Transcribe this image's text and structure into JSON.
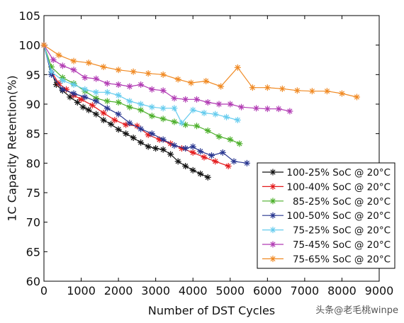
{
  "chart_data": {
    "type": "line",
    "title": "",
    "xlabel": "Number of DST Cycles",
    "ylabel": "1C Capacity Retention(%)",
    "xlim": [
      0,
      9000
    ],
    "ylim": [
      60,
      105
    ],
    "xticks": [
      0,
      1000,
      2000,
      3000,
      4000,
      5000,
      6000,
      7000,
      8000,
      9000
    ],
    "yticks": [
      60,
      65,
      70,
      75,
      80,
      85,
      90,
      95,
      100,
      105
    ],
    "grid": false,
    "legend_position": "lower-right",
    "series": [
      {
        "name": "100-25% SoC @ 20°C",
        "color": "#111111",
        "marker": "star",
        "x": [
          0,
          200,
          330,
          500,
          700,
          900,
          1050,
          1200,
          1400,
          1600,
          1800,
          2000,
          2200,
          2400,
          2600,
          2800,
          3000,
          3200,
          3400,
          3600,
          3800,
          4000,
          4200,
          4400
        ],
        "y": [
          100,
          95.5,
          93.3,
          92.3,
          91.2,
          90.3,
          89.5,
          89.0,
          88.3,
          87.3,
          86.6,
          85.7,
          85.0,
          84.3,
          83.5,
          82.8,
          82.5,
          82.3,
          81.5,
          80.3,
          79.5,
          78.8,
          78.2,
          77.6
        ]
      },
      {
        "name": "100-40% SoC @ 20°C",
        "color": "#e31a1c",
        "marker": "star",
        "x": [
          0,
          200,
          400,
          600,
          800,
          1000,
          1300,
          1600,
          1900,
          2200,
          2500,
          2800,
          3100,
          3400,
          3700,
          4000,
          4300,
          4600,
          4950
        ],
        "y": [
          100,
          95.5,
          93.5,
          92.5,
          91.5,
          90.8,
          89.8,
          88.5,
          87.3,
          86.5,
          86.3,
          84.8,
          84.0,
          83.3,
          82.5,
          81.8,
          81.0,
          80.3,
          79.5
        ]
      },
      {
        "name": "85-25% SoC @ 20°C",
        "color": "#4caf2a",
        "marker": "star",
        "x": [
          0,
          200,
          500,
          800,
          1100,
          1400,
          1700,
          2000,
          2300,
          2600,
          2900,
          3200,
          3500,
          3800,
          4100,
          4400,
          4700,
          5000,
          5250
        ],
        "y": [
          100,
          96.3,
          94.5,
          93.5,
          92.2,
          91.0,
          90.5,
          90.3,
          89.5,
          89.0,
          88.0,
          87.5,
          87.0,
          86.5,
          86.3,
          85.5,
          84.5,
          84.0,
          83.3
        ]
      },
      {
        "name": "100-50% SoC @ 20°C",
        "color": "#27358f",
        "marker": "star",
        "x": [
          0,
          200,
          500,
          800,
          1100,
          1400,
          1700,
          2000,
          2300,
          2600,
          2900,
          3200,
          3500,
          3800,
          4000,
          4200,
          4500,
          4800,
          5100,
          5450
        ],
        "y": [
          100,
          95.0,
          92.5,
          91.8,
          91.2,
          90.5,
          89.3,
          88.3,
          86.8,
          85.8,
          85.0,
          84.0,
          83.0,
          82.5,
          82.8,
          82.0,
          81.3,
          81.8,
          80.3,
          80.0
        ]
      },
      {
        "name": "75-25% SoC @ 20°C",
        "color": "#66ccee",
        "marker": "star",
        "x": [
          0,
          200,
          500,
          800,
          1100,
          1400,
          1700,
          2000,
          2300,
          2600,
          2900,
          3200,
          3500,
          3700,
          4000,
          4300,
          4600,
          4900,
          5200
        ],
        "y": [
          100,
          95.5,
          94.0,
          93.3,
          92.5,
          92.0,
          92.0,
          91.5,
          90.5,
          90.0,
          89.5,
          89.3,
          89.3,
          86.8,
          89.0,
          88.5,
          88.3,
          87.8,
          87.3
        ]
      },
      {
        "name": "75-45% SoC @ 20°C",
        "color": "#b13bb3",
        "marker": "star",
        "x": [
          0,
          250,
          500,
          800,
          1100,
          1400,
          1700,
          2000,
          2300,
          2600,
          2900,
          3200,
          3500,
          3800,
          4100,
          4400,
          4700,
          5000,
          5300,
          5700,
          6000,
          6300,
          6600
        ],
        "y": [
          100,
          97.5,
          96.5,
          95.8,
          94.5,
          94.3,
          93.5,
          93.3,
          93.0,
          93.3,
          92.5,
          92.3,
          91.0,
          90.8,
          90.8,
          90.3,
          90.0,
          90.0,
          89.5,
          89.3,
          89.2,
          89.2,
          88.8
        ]
      },
      {
        "name": "75-65% SoC @ 20°C",
        "color": "#f08a24",
        "marker": "star",
        "x": [
          0,
          400,
          800,
          1200,
          1600,
          2000,
          2400,
          2800,
          3200,
          3600,
          3950,
          4350,
          4750,
          5200,
          5600,
          6000,
          6400,
          6800,
          7200,
          7600,
          8000,
          8400
        ],
        "y": [
          100,
          98.3,
          97.3,
          97.0,
          96.3,
          95.8,
          95.5,
          95.2,
          95.0,
          94.2,
          93.6,
          93.9,
          93.0,
          96.2,
          92.8,
          92.8,
          92.6,
          92.3,
          92.2,
          92.2,
          91.8,
          91.2
        ]
      }
    ]
  },
  "watermark": "头条@老毛桃winpe"
}
